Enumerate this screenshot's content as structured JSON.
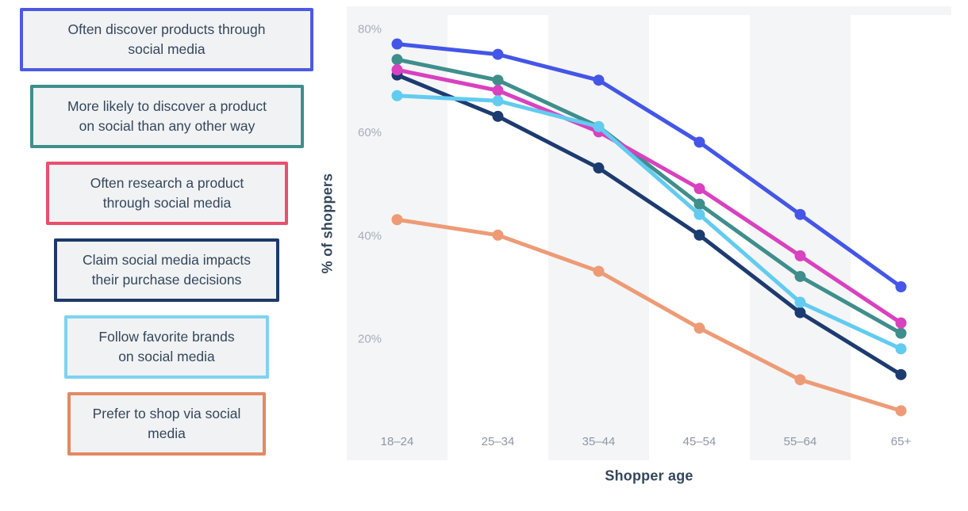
{
  "legend": {
    "items": [
      {
        "id": "discover-products",
        "line1": "Often discover products through",
        "line2": "social media",
        "color": "#4c5ae2"
      },
      {
        "id": "more-likely-discover",
        "line1": "More likely to discover a product",
        "line2": "on social than any other way",
        "color": "#3f8e8c"
      },
      {
        "id": "research-product",
        "line1": "Often research a product",
        "line2": "through social media",
        "color": "#e94f6e"
      },
      {
        "id": "impacts-decisions",
        "line1": "Claim social media impacts",
        "line2": "their purchase decisions",
        "color": "#1c3a69"
      },
      {
        "id": "follow-brands",
        "line1": "Follow favorite brands",
        "line2": "on social media",
        "color": "#7ed3f0"
      },
      {
        "id": "prefer-shop",
        "line1": "Prefer to shop via social",
        "line2": "media",
        "color": "#e18a62"
      }
    ]
  },
  "chart_data": {
    "type": "line",
    "categories": [
      "18–24",
      "25–34",
      "35–44",
      "45–54",
      "55–64",
      "65+"
    ],
    "series": [
      {
        "name": "Often discover products through social media",
        "color": "#4456e7",
        "values": [
          77,
          75,
          70,
          58,
          44,
          30
        ]
      },
      {
        "name": "More likely to discover a product on social than any other way",
        "color": "#3f8e8c",
        "values": [
          74,
          70,
          61,
          46,
          32,
          21
        ]
      },
      {
        "name": "Often research a product through social media",
        "color": "#d841bf",
        "values": [
          72,
          68,
          60,
          49,
          36,
          23
        ]
      },
      {
        "name": "Claim social media impacts their purchase decisions",
        "color": "#1c3b70",
        "values": [
          71,
          63,
          53,
          40,
          25,
          13
        ]
      },
      {
        "name": "Follow favorite brands on social media",
        "color": "#62cbf0",
        "values": [
          67,
          66,
          61,
          44,
          27,
          18
        ]
      },
      {
        "name": "Prefer to shop via social media",
        "color": "#ed9b76",
        "values": [
          43,
          40,
          33,
          22,
          12,
          6
        ]
      }
    ],
    "title": "",
    "xlabel": "Shopper age",
    "ylabel": "% of shoppers",
    "y_ticks": [
      "80%",
      "60%",
      "40%",
      "20%"
    ],
    "y_tick_values": [
      80,
      60,
      40,
      20
    ],
    "ylim": [
      0,
      84
    ],
    "grid": false,
    "legend_position": "left",
    "plot_bg": "#f4f5f6",
    "stripe_color": "#ffffff",
    "y_tick_color": "#a5aebd",
    "x_tick_color": "#8d97a7"
  }
}
